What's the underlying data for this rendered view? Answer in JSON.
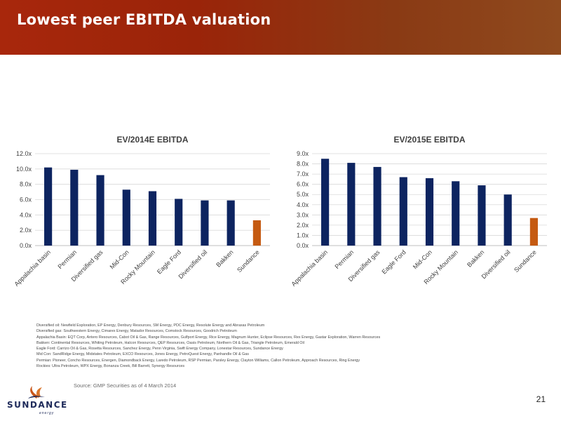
{
  "header": {
    "title": "Lowest peer EBITDA valuation"
  },
  "chart_data": [
    {
      "type": "bar",
      "title": "EV/2014E EBITDA",
      "categories": [
        "Appalachia basin",
        "Permian",
        "Diversified gas",
        "Mid-Con",
        "Rocky Mountain",
        "Eagle Ford",
        "Diversified oil",
        "Bakken",
        "Sundance"
      ],
      "values": [
        10.2,
        9.9,
        9.2,
        7.3,
        7.1,
        6.1,
        5.9,
        5.9,
        3.3
      ],
      "ylim": [
        0,
        12
      ],
      "yticks": [
        "0.0x",
        "2.0x",
        "4.0x",
        "6.0x",
        "8.0x",
        "10.0x",
        "12.0x"
      ],
      "highlight": "Sundance",
      "grid": true,
      "xlabel": "",
      "ylabel": ""
    },
    {
      "type": "bar",
      "title": "EV/2015E EBITDA",
      "categories": [
        "Appalachia basin",
        "Permian",
        "Diversified gas",
        "Eagle Ford",
        "Mid-Con",
        "Rocky Mountain",
        "Bakken",
        "Diversified oil",
        "Sundance"
      ],
      "values": [
        8.5,
        8.1,
        7.7,
        6.7,
        6.6,
        6.3,
        5.9,
        5.0,
        2.7
      ],
      "ylim": [
        0,
        9
      ],
      "yticks": [
        "0.0x",
        "1.0x",
        "2.0x",
        "3.0x",
        "4.0x",
        "5.0x",
        "6.0x",
        "7.0x",
        "8.0x",
        "9.0x"
      ],
      "highlight": "Sundance",
      "grid": true,
      "xlabel": "",
      "ylabel": ""
    }
  ],
  "colors": {
    "bar": "#0d2460",
    "highlight": "#c55a11",
    "header": "#a8270c",
    "grid": "#d9d9d9"
  },
  "notes": [
    "Diversified oil: Newfield Exploration, EP Energy, Denbury Resources, SM Energy, PDC Energy, Resolute Energy and Abraxas Petroleum",
    "Diversified gas: Southwestern Energy, Cimarex Energy, Matador Resources, Comstock Resources, Goodrich Petroleum",
    "Appalachia Basin: EQT Corp, Antero Resources, Cabot Oil & Gas, Range Resources, Gulfport Energy, Rice Energy, Magnum Hunter, Eclipse Resources, Rex Energy, Gastar Exploration, Warren Resources",
    "Bakken: Continental Resources, Whiting Petroleum, Halcon Resources, QEP Resources, Oasis Petroleum, Northern Oil & Gas, Triangle Petroleum, Emerald Oil",
    "Eagle Ford: Carrizo Oil & Gas, Rosetta Resources, Sanchez Energy, Penn Virginia, Swift Energy Company, Lonestar Resources, Sundance Energy",
    "Mid Con: SandRidge Energy, Midstates Petroleum, EXCO Resources, Jones Energy, PetroQuest Energy, Panhandle Oil & Gas",
    "Permian: Pioneer, Concho Resources, Energen, Diamondback Energy, Laredo Petroleum, RSP Permian, Parsley Energy, Clayton Williams, Callon Petroleum, Approach Resources, Ring Energy",
    "Rockies: Ultra Petroleum, WPX Energy, Bonanza Creek, Bill Barrett, Synergy Resources"
  ],
  "footer": {
    "source": "Source: GMP Securities as of 4 March 2014",
    "page_number": "21",
    "logo_name": "SUNDANCE",
    "logo_tagline": "energy"
  }
}
